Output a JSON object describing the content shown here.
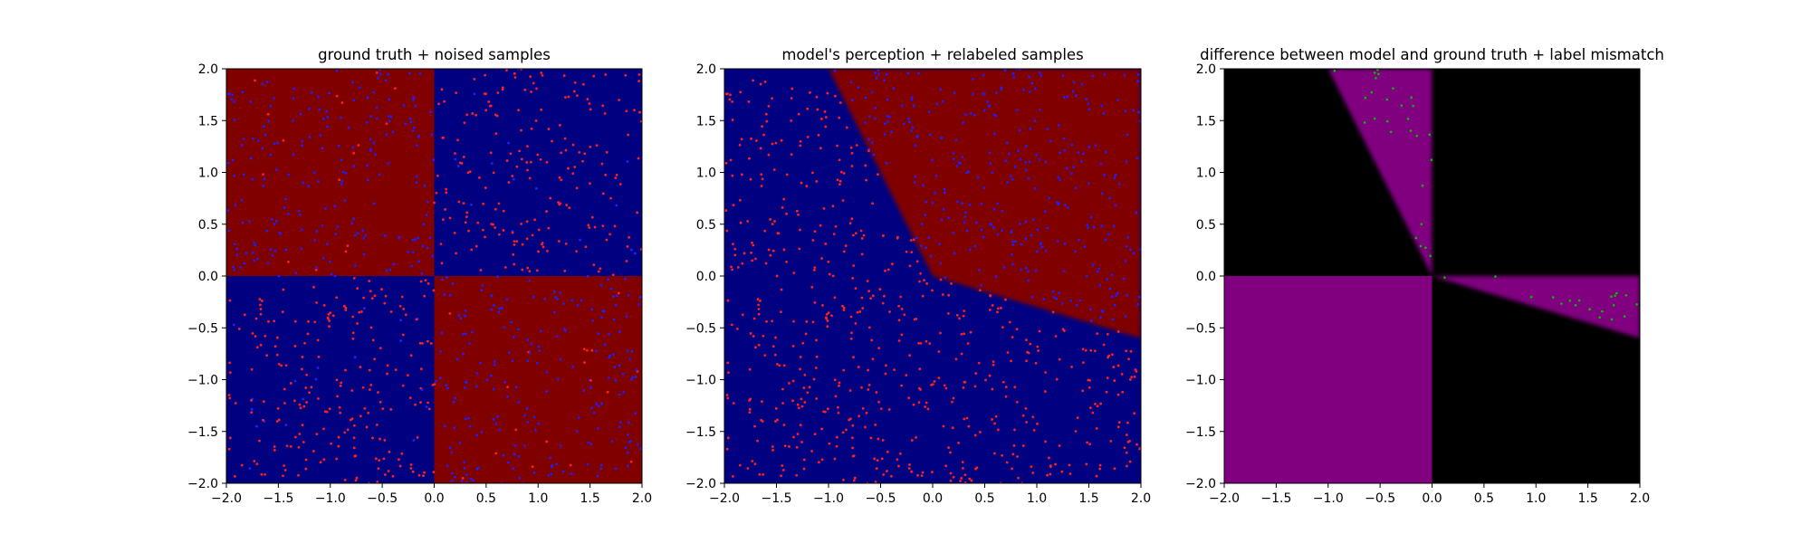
{
  "chart_data": [
    {
      "type": "heatmap",
      "title": "ground truth + noised samples",
      "xlabel": "",
      "ylabel": "",
      "xlim": [
        -2.0,
        2.0
      ],
      "ylim": [
        -2.0,
        2.0
      ],
      "x_ticks": [
        "−2.0",
        "−1.5",
        "−1.0",
        "−0.5",
        "0.0",
        "0.5",
        "1.0",
        "1.5",
        "2.0"
      ],
      "y_ticks": [
        "−2.0",
        "−1.5",
        "−1.0",
        "−0.5",
        "0.0",
        "0.5",
        "1.0",
        "1.5",
        "2.0"
      ],
      "grid": false,
      "regions": [
        {
          "x": [
            -2.0,
            0.0
          ],
          "y": [
            0.0,
            2.0
          ],
          "color": "#800000"
        },
        {
          "x": [
            0.0,
            2.0
          ],
          "y": [
            0.0,
            2.0
          ],
          "color": "#000080"
        },
        {
          "x": [
            -2.0,
            0.0
          ],
          "y": [
            -2.0,
            0.0
          ],
          "color": "#000080"
        },
        {
          "x": [
            0.0,
            2.0
          ],
          "y": [
            -2.0,
            0.0
          ],
          "color": "#800000"
        }
      ],
      "scatter_colors": {
        "red": "#ff2020",
        "blue": "#2020ff"
      },
      "scatter_note": "points uniform in [-2,2]^2, mostly contrast-colored vs region (noised)"
    },
    {
      "type": "heatmap",
      "title": "model's perception + relabeled samples",
      "xlabel": "",
      "ylabel": "",
      "xlim": [
        -2.0,
        2.0
      ],
      "ylim": [
        -2.0,
        2.0
      ],
      "x_ticks": [
        "−2.0",
        "−1.5",
        "−1.0",
        "−0.5",
        "0.0",
        "0.5",
        "1.0",
        "1.5",
        "2.0"
      ],
      "y_ticks": [
        "−2.0",
        "−1.5",
        "−1.0",
        "−0.5",
        "0.0",
        "0.5",
        "1.0",
        "1.5",
        "2.0"
      ],
      "grid": false,
      "boundary": {
        "through": [
          0.0,
          0.0
        ],
        "upper_left_end": [
          -1.0,
          2.0
        ],
        "lower_right_end": [
          2.0,
          -0.6
        ]
      },
      "region_colors": {
        "inside": "#800000",
        "outside": "#000080"
      },
      "scatter_colors": {
        "red": "#ff2020",
        "blue": "#2020ff"
      }
    },
    {
      "type": "heatmap",
      "title": "difference between model and ground truth + label mismatch",
      "xlabel": "",
      "ylabel": "",
      "xlim": [
        -2.0,
        2.0
      ],
      "ylim": [
        -2.0,
        2.0
      ],
      "x_ticks": [
        "−2.0",
        "−1.5",
        "−1.0",
        "−0.5",
        "0.0",
        "0.5",
        "1.0",
        "1.5",
        "2.0"
      ],
      "y_ticks": [
        "−2.0",
        "−1.5",
        "−1.0",
        "−0.5",
        "0.0",
        "0.5",
        "1.0",
        "1.5",
        "2.0"
      ],
      "grid": false,
      "region_colors": {
        "match": "#000000",
        "mismatch": "#800080"
      },
      "scatter_colors": {
        "green": "#00c000"
      }
    }
  ]
}
